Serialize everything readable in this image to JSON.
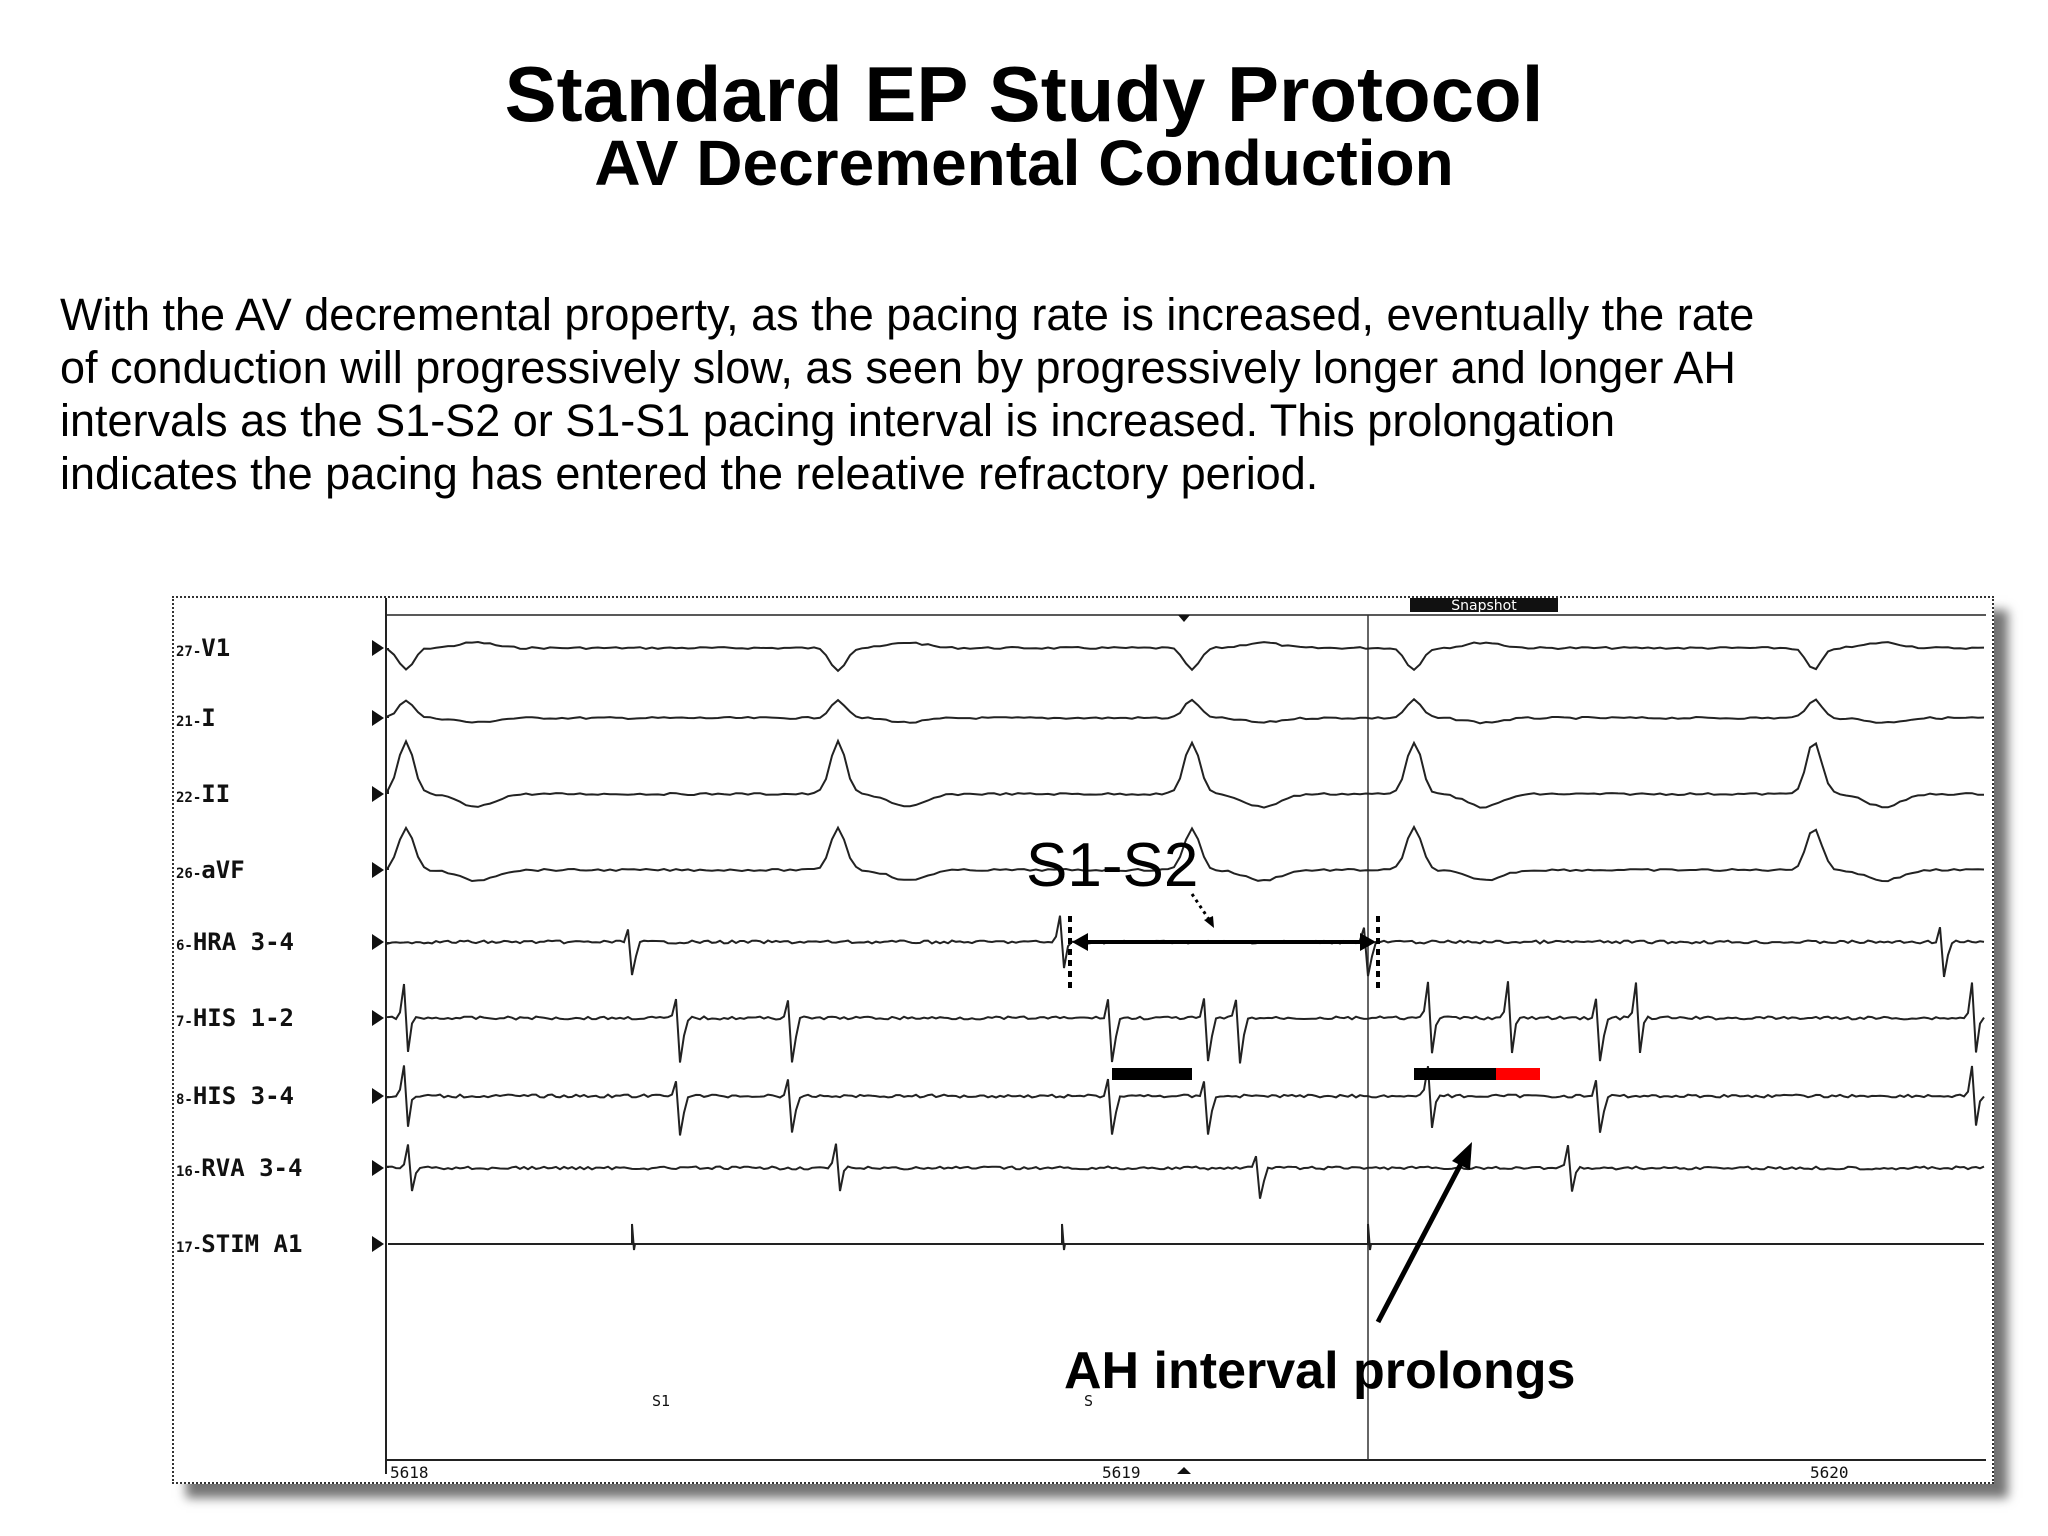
{
  "title": "Standard EP Study Protocol",
  "subtitle": "AV Decremental Conduction",
  "description": "With the AV decremental property, as the pacing rate is increased, eventually the rate\nof conduction will progressively slow, as seen by progressively longer and longer AH\nintervals as the S1-S2 or S1-S1 pacing interval is increased. This prolongation\nindicates the pacing has entered the releative refractory period.",
  "tracing": {
    "channels": [
      {
        "prefix": "27-",
        "name": "V1"
      },
      {
        "prefix": "21-",
        "name": "I"
      },
      {
        "prefix": "22-",
        "name": "II"
      },
      {
        "prefix": "26-",
        "name": "aVF"
      },
      {
        "prefix": "6-",
        "name": "HRA  3-4"
      },
      {
        "prefix": "7-",
        "name": "HIS  1-2"
      },
      {
        "prefix": "8-",
        "name": "HIS  3-4"
      },
      {
        "prefix": "16-",
        "name": "RVA  3-4"
      },
      {
        "prefix": "17-",
        "name": "STIM  A1"
      }
    ],
    "time_labels": [
      "5618",
      "5619",
      "5620"
    ],
    "snapshot_label": "Snapshot",
    "stim_marker_label": "S1",
    "stim_marker_label_2": "S",
    "colors": {
      "trace": "#222222",
      "interval_bar": "#000000",
      "prolongation": "#ff0000"
    }
  },
  "annotations": {
    "s1s2": "S1-S2",
    "ah": "AH interval prolongs"
  }
}
